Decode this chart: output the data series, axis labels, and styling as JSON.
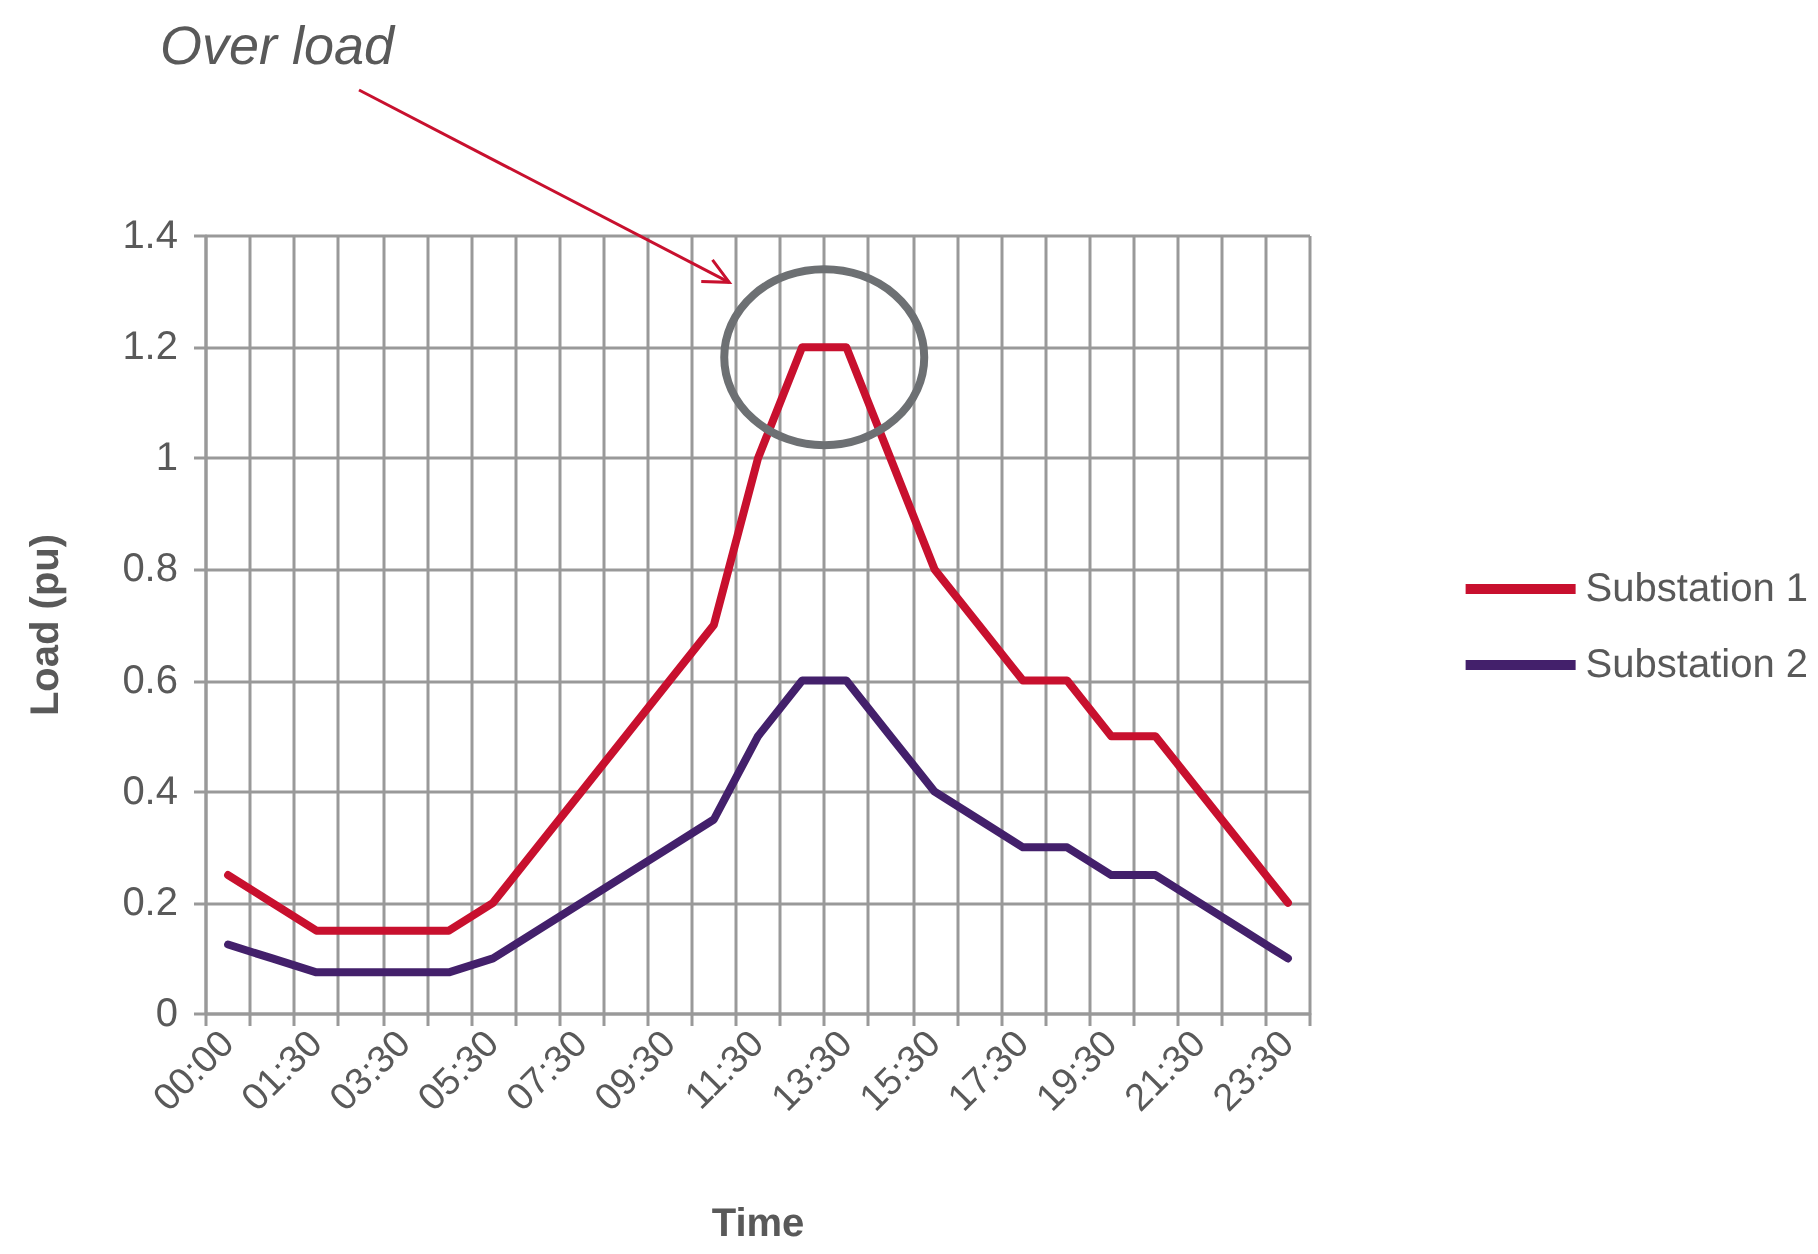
{
  "chart_data": {
    "type": "line",
    "categories": [
      "00:00",
      null,
      "01:30",
      null,
      "03:30",
      null,
      "05:30",
      null,
      "07:30",
      null,
      "09:30",
      null,
      "11:30",
      null,
      "13:30",
      null,
      "15:30",
      null,
      "17:30",
      null,
      "19:30",
      null,
      "21:30",
      null,
      "23:30"
    ],
    "series": [
      {
        "name": "Substation 1",
        "color": "#c8102e",
        "values": [
          0.25,
          0.2,
          0.15,
          0.15,
          0.15,
          0.15,
          0.2,
          0.3,
          0.4,
          0.5,
          0.6,
          0.7,
          1.0,
          1.2,
          1.2,
          1.0,
          0.8,
          0.7,
          0.6,
          0.6,
          0.5,
          0.5,
          0.4,
          0.3,
          0.2
        ]
      },
      {
        "name": "Substation 2",
        "color": "#43206b",
        "values": [
          0.125,
          0.1,
          0.075,
          0.075,
          0.075,
          0.075,
          0.1,
          0.15,
          0.2,
          0.25,
          0.3,
          0.35,
          0.5,
          0.6,
          0.6,
          0.5,
          0.4,
          0.35,
          0.3,
          0.3,
          0.25,
          0.25,
          0.2,
          0.15,
          0.1
        ]
      }
    ],
    "xlabel": "Time",
    "ylabel": "Load (pu)",
    "ylim": [
      0,
      1.4
    ],
    "yticks": [
      0,
      0.2,
      0.4,
      0.6,
      0.8,
      1,
      1.2,
      1.4
    ],
    "annotations": [
      "Over load"
    ],
    "grid": true,
    "legend": "right",
    "marker": "none",
    "line_style": "solid"
  }
}
